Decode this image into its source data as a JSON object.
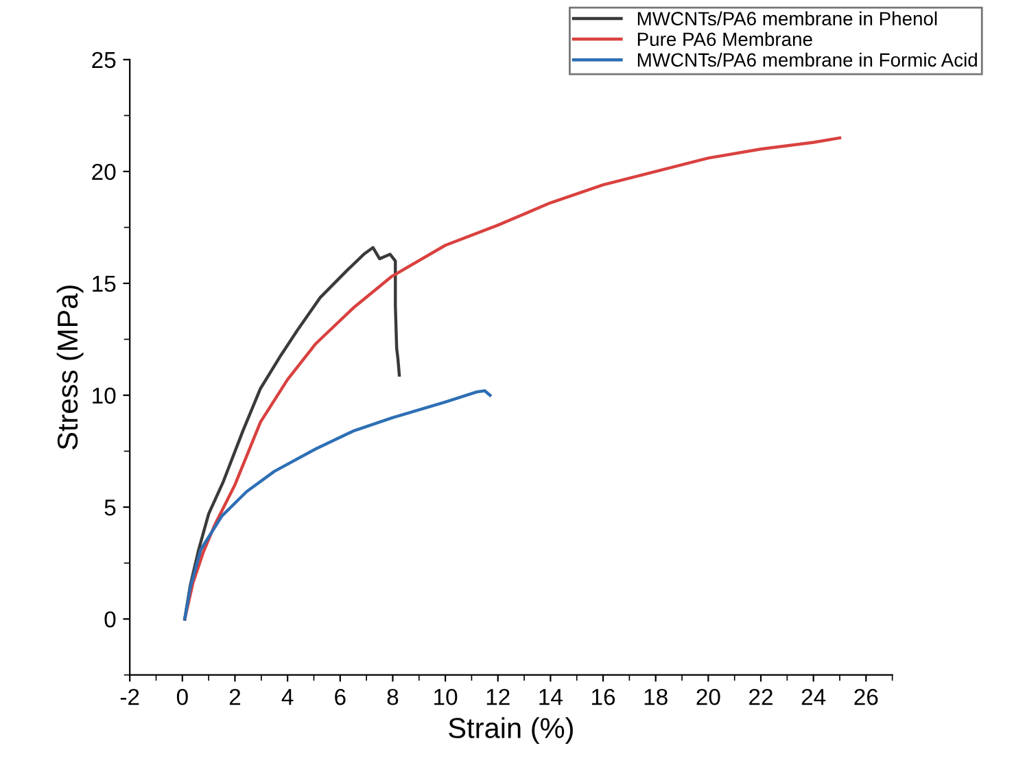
{
  "chart_data": {
    "type": "line",
    "xlabel": "Strain (%)",
    "ylabel": "Stress (MPa)",
    "xlim": [
      -2,
      27
    ],
    "xticks": [
      -2,
      0,
      2,
      4,
      6,
      8,
      10,
      12,
      14,
      16,
      18,
      20,
      22,
      24,
      26
    ],
    "ylim": [
      -2.5,
      25
    ],
    "yticks": [
      0,
      5,
      10,
      15,
      20,
      25
    ],
    "grid": false,
    "legend": "top right",
    "marker": "none",
    "line_style": "solid",
    "series": [
      {
        "name": "MWCNTs/PA6 membrane in Phenol",
        "color": "#3a3a3a",
        "x": [
          0.09,
          0.3,
          0.62,
          1.0,
          1.56,
          2.3,
          2.97,
          3.7,
          4.37,
          5.23,
          6.28,
          6.9,
          7.25,
          7.5,
          7.9,
          8.1,
          8.1,
          8.15,
          8.2,
          8.25
        ],
        "values": [
          0,
          1.5,
          3.1,
          4.7,
          6.15,
          8.4,
          10.3,
          11.7,
          12.9,
          14.35,
          15.6,
          16.3,
          16.6,
          16.1,
          16.3,
          16.0,
          14.0,
          12.1,
          11.6,
          10.9
        ]
      },
      {
        "name": "Pure PA6 Membrane",
        "color": "#d9413f",
        "x": [
          0.09,
          0.4,
          0.8,
          1.23,
          2.0,
          2.97,
          4.0,
          5.07,
          6.5,
          7.95,
          10,
          12,
          14,
          16,
          18,
          20,
          22,
          24,
          25
        ],
        "values": [
          0,
          1.6,
          3.0,
          4.2,
          6.0,
          8.8,
          10.7,
          12.3,
          13.9,
          15.3,
          16.7,
          17.6,
          18.6,
          19.4,
          20.0,
          20.6,
          21.0,
          21.3,
          21.5
        ]
      },
      {
        "name": "MWCNTs/PA6 membrane in Formic Acid",
        "color": "#2e6fb5",
        "x": [
          0.09,
          0.3,
          0.7,
          1.5,
          2.45,
          3.5,
          5.07,
          6.5,
          8,
          10,
          11.2,
          11.5,
          11.7
        ],
        "values": [
          0,
          1.4,
          3.1,
          4.6,
          5.7,
          6.6,
          7.6,
          8.4,
          9.0,
          9.7,
          10.15,
          10.2,
          10.0
        ]
      }
    ]
  }
}
